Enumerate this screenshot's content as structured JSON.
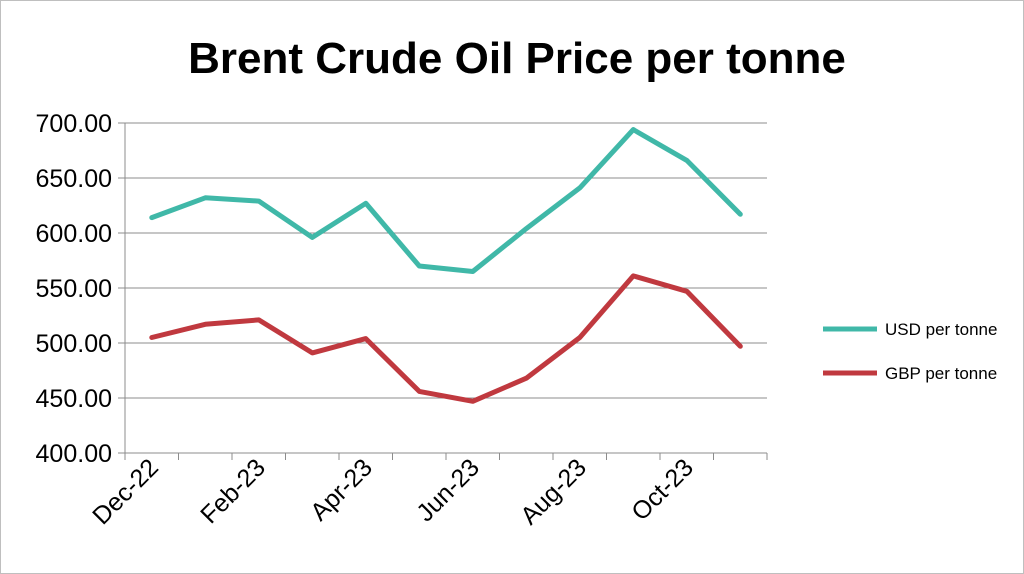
{
  "chart_data": {
    "type": "line",
    "title": "Brent Crude Oil Price per tonne",
    "xlabel": "",
    "ylabel": "",
    "x": [
      "Dec-22",
      "Jan-23",
      "Feb-23",
      "Mar-23",
      "Apr-23",
      "May-23",
      "Jun-23",
      "Jul-23",
      "Aug-23",
      "Sep-23",
      "Oct-23",
      "Nov-23"
    ],
    "x_tick_labels": [
      "Dec-22",
      "Feb-23",
      "Apr-23",
      "Jun-23",
      "Aug-23",
      "Oct-23"
    ],
    "y_tick_labels": [
      "700.00",
      "650.00",
      "600.00",
      "550.00",
      "500.00",
      "450.00",
      "400.00"
    ],
    "ylim": [
      400,
      700
    ],
    "grid": true,
    "legend_position": "right",
    "series": [
      {
        "name": "USD per tonne",
        "color": "#40b8a8",
        "values": [
          614,
          632,
          629,
          596,
          627,
          570,
          565,
          604,
          641,
          694,
          666,
          617
        ]
      },
      {
        "name": "GBP per tonne",
        "color": "#c0393f",
        "values": [
          505,
          517,
          521,
          491,
          504,
          456,
          447,
          468,
          505,
          561,
          547,
          497
        ]
      }
    ]
  }
}
